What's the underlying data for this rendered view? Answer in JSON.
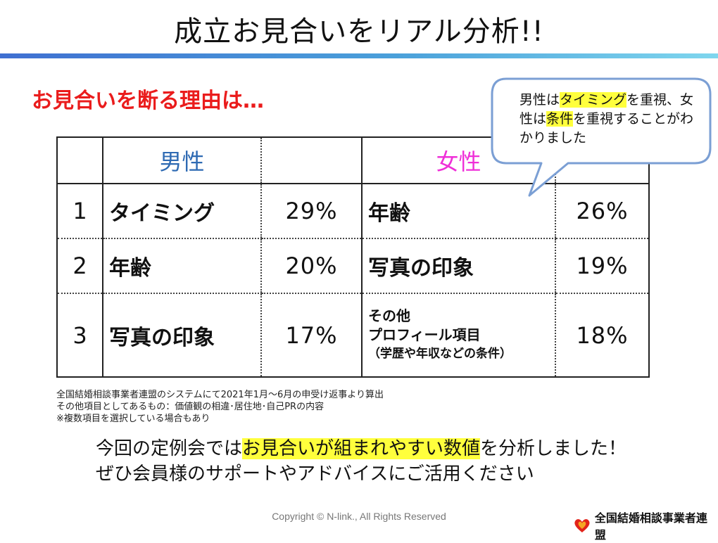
{
  "title": "成立お見合いをリアル分析!!",
  "subtitle": "お見合いを断る理由は…",
  "table": {
    "header_male": "男性",
    "header_female": "女性",
    "rows": [
      {
        "rank": "1",
        "male_reason": "タイミング",
        "male_pct": "29%",
        "female_reason": "年齢",
        "female_pct": "26%"
      },
      {
        "rank": "2",
        "male_reason": "年齢",
        "male_pct": "20%",
        "female_reason": "写真の印象",
        "female_pct": "19%"
      },
      {
        "rank": "3",
        "male_reason": "写真の印象",
        "male_pct": "17%",
        "female_reason_line1": "その他",
        "female_reason_line2": "プロフィール項目",
        "female_reason_line3": "（学歴や年収などの条件）",
        "female_pct": "18%"
      }
    ]
  },
  "callout": {
    "part1": "男性は",
    "hl1": "タイミング",
    "part2": "を重視、女性は",
    "hl2": "条件",
    "part3": "を重視することがわかりました"
  },
  "notes": [
    "全国結婚相談事業者連盟のシステムにて2021年1月～6月の申受け返事より算出",
    "その他項目としてあるもの：価値観の相違･居住地･自己PRの内容",
    "※複数項目を選択している場合もあり"
  ],
  "closing": {
    "line1_a": "今回の定例会では",
    "line1_hl": "お見合いが組まれやすい数値",
    "line1_b": "を分析しました！",
    "line2": "ぜひ会員様のサポートやアドバイスにご活用ください"
  },
  "footer": {
    "copyright": "Copyright © N-link., All Rights Reserved",
    "logo_text": "全国結婚相談事業者連盟",
    "logo_icon": "heart-logo-icon",
    "logo_colors": [
      "#e2231a",
      "#f5a623"
    ]
  },
  "colors": {
    "subtitle": "#ea1c1c",
    "male_header": "#2e6ab3",
    "female_header": "#ef2fd8",
    "highlight": "#ffff3c",
    "callout_border": "#7b9fd4"
  }
}
